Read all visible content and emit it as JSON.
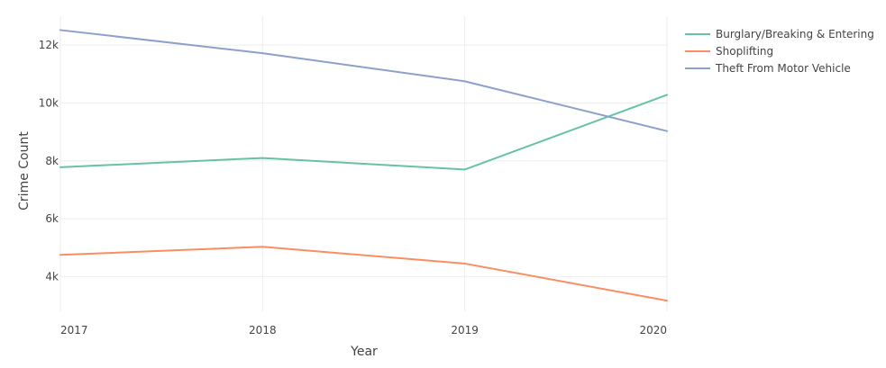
{
  "chart_data": {
    "type": "line",
    "x": [
      2017,
      2018,
      2019,
      2020
    ],
    "xlabel": "Year",
    "ylabel": "Crime Count",
    "xtick_labels": [
      "2017",
      "2018",
      "2019",
      "2020"
    ],
    "yticks": [
      4000,
      6000,
      8000,
      10000,
      12000
    ],
    "ytick_labels": [
      "4k",
      "6k",
      "8k",
      "10k",
      "12k"
    ],
    "xlim": [
      2017,
      2020
    ],
    "ylim": [
      2800,
      13000
    ],
    "grid": true,
    "legend_position": "top-right",
    "series": [
      {
        "name": "Burglary/Breaking & Entering",
        "color": "#66c2a5",
        "values": [
          7780,
          8100,
          7700,
          10280
        ]
      },
      {
        "name": "Shoplifting",
        "color": "#fc8d62",
        "values": [
          4750,
          5030,
          4450,
          3170
        ]
      },
      {
        "name": "Theft From Motor Vehicle",
        "color": "#8da0cb",
        "values": [
          12520,
          11720,
          10750,
          9030
        ]
      }
    ]
  }
}
